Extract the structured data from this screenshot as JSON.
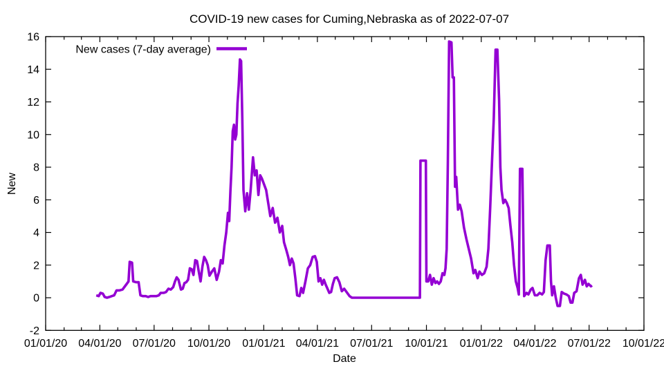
{
  "chart_data": {
    "type": "line",
    "title": "COVID-19 new cases for Cuming,Nebraska as of 2022-07-07",
    "xlabel": "Date",
    "ylabel": "New",
    "legend": {
      "label": "New cases (7-day average)",
      "position": "top-left-inside"
    },
    "line_color": "#9400d3",
    "background_color": "#ffffff",
    "border_color": "#000000",
    "grid": false,
    "x_axis": {
      "start_date": "2020-01-01",
      "end_date": "2022-10-01",
      "minor_tick_interval": "monthly",
      "ticks": [
        [
          "01/01/20",
          "2020-01-01"
        ],
        [
          "04/01/20",
          "2020-04-01"
        ],
        [
          "07/01/20",
          "2020-07-01"
        ],
        [
          "10/01/20",
          "2020-10-01"
        ],
        [
          "01/01/21",
          "2021-01-01"
        ],
        [
          "04/01/21",
          "2021-04-01"
        ],
        [
          "07/01/21",
          "2021-07-01"
        ],
        [
          "10/01/21",
          "2021-10-01"
        ],
        [
          "01/01/22",
          "2022-01-01"
        ],
        [
          "04/01/22",
          "2022-04-01"
        ],
        [
          "07/01/22",
          "2022-07-01"
        ],
        [
          "10/01/22",
          "2022-10-01"
        ]
      ]
    },
    "y_axis": {
      "min": -2,
      "max": 16,
      "tick_step": 2,
      "ticks": [
        -2,
        0,
        2,
        4,
        6,
        8,
        10,
        12,
        14,
        16
      ]
    },
    "series": [
      {
        "name": "New cases (7-day average)",
        "color": "#9400d3",
        "points": [
          [
            "2020-03-26",
            0.15
          ],
          [
            "2020-03-30",
            0.1
          ],
          [
            "2020-04-02",
            0.3
          ],
          [
            "2020-04-06",
            0.25
          ],
          [
            "2020-04-09",
            0.05
          ],
          [
            "2020-04-13",
            0
          ],
          [
            "2020-04-17",
            0.05
          ],
          [
            "2020-04-21",
            0.1
          ],
          [
            "2020-04-25",
            0.15
          ],
          [
            "2020-04-29",
            0.45
          ],
          [
            "2020-05-04",
            0.45
          ],
          [
            "2020-05-09",
            0.5
          ],
          [
            "2020-05-13",
            0.7
          ],
          [
            "2020-05-16",
            0.85
          ],
          [
            "2020-05-19",
            1.0
          ],
          [
            "2020-05-21",
            2.2
          ],
          [
            "2020-05-25",
            2.15
          ],
          [
            "2020-05-27",
            1.0
          ],
          [
            "2020-06-01",
            0.95
          ],
          [
            "2020-06-05",
            0.95
          ],
          [
            "2020-06-08",
            0.15
          ],
          [
            "2020-06-12",
            0.1
          ],
          [
            "2020-06-17",
            0.1
          ],
          [
            "2020-06-21",
            0.05
          ],
          [
            "2020-06-25",
            0.1
          ],
          [
            "2020-06-30",
            0.1
          ],
          [
            "2020-07-05",
            0.1
          ],
          [
            "2020-07-09",
            0.15
          ],
          [
            "2020-07-12",
            0.3
          ],
          [
            "2020-07-17",
            0.3
          ],
          [
            "2020-07-21",
            0.35
          ],
          [
            "2020-07-25",
            0.55
          ],
          [
            "2020-07-29",
            0.5
          ],
          [
            "2020-08-02",
            0.65
          ],
          [
            "2020-08-05",
            1.0
          ],
          [
            "2020-08-08",
            1.25
          ],
          [
            "2020-08-11",
            1.1
          ],
          [
            "2020-08-15",
            0.5
          ],
          [
            "2020-08-18",
            0.55
          ],
          [
            "2020-08-21",
            0.9
          ],
          [
            "2020-08-24",
            0.95
          ],
          [
            "2020-08-27",
            1.1
          ],
          [
            "2020-08-30",
            1.8
          ],
          [
            "2020-09-02",
            1.75
          ],
          [
            "2020-09-05",
            1.4
          ],
          [
            "2020-09-08",
            2.3
          ],
          [
            "2020-09-11",
            2.25
          ],
          [
            "2020-09-14",
            1.6
          ],
          [
            "2020-09-17",
            1.0
          ],
          [
            "2020-09-20",
            1.9
          ],
          [
            "2020-09-23",
            2.5
          ],
          [
            "2020-09-26",
            2.3
          ],
          [
            "2020-09-29",
            2.0
          ],
          [
            "2020-10-02",
            1.35
          ],
          [
            "2020-10-06",
            1.6
          ],
          [
            "2020-10-10",
            1.8
          ],
          [
            "2020-10-14",
            1.1
          ],
          [
            "2020-10-18",
            1.6
          ],
          [
            "2020-10-21",
            2.3
          ],
          [
            "2020-10-24",
            2.1
          ],
          [
            "2020-10-27",
            3.2
          ],
          [
            "2020-10-30",
            4.0
          ],
          [
            "2020-11-02",
            5.2
          ],
          [
            "2020-11-04",
            4.7
          ],
          [
            "2020-11-06",
            6.5
          ],
          [
            "2020-11-08",
            8.0
          ],
          [
            "2020-11-10",
            10.2
          ],
          [
            "2020-11-12",
            10.6
          ],
          [
            "2020-11-14",
            9.7
          ],
          [
            "2020-11-16",
            10.0
          ],
          [
            "2020-11-18",
            11.9
          ],
          [
            "2020-11-20",
            13.0
          ],
          [
            "2020-11-22",
            14.6
          ],
          [
            "2020-11-24",
            14.5
          ],
          [
            "2020-11-26",
            11.0
          ],
          [
            "2020-11-28",
            6.6
          ],
          [
            "2020-12-01",
            5.3
          ],
          [
            "2020-12-04",
            6.4
          ],
          [
            "2020-12-07",
            5.4
          ],
          [
            "2020-12-10",
            6.6
          ],
          [
            "2020-12-14",
            8.6
          ],
          [
            "2020-12-17",
            7.5
          ],
          [
            "2020-12-20",
            7.8
          ],
          [
            "2020-12-23",
            6.3
          ],
          [
            "2020-12-26",
            7.5
          ],
          [
            "2020-12-29",
            7.3
          ],
          [
            "2021-01-01",
            7.0
          ],
          [
            "2021-01-05",
            6.6
          ],
          [
            "2021-01-08",
            5.9
          ],
          [
            "2021-01-12",
            5.0
          ],
          [
            "2021-01-16",
            5.5
          ],
          [
            "2021-01-20",
            4.6
          ],
          [
            "2021-01-24",
            4.9
          ],
          [
            "2021-01-28",
            4.0
          ],
          [
            "2021-02-01",
            4.4
          ],
          [
            "2021-02-04",
            3.4
          ],
          [
            "2021-02-08",
            2.9
          ],
          [
            "2021-02-11",
            2.5
          ],
          [
            "2021-02-14",
            2.0
          ],
          [
            "2021-02-17",
            2.4
          ],
          [
            "2021-02-20",
            2.1
          ],
          [
            "2021-02-23",
            1.2
          ],
          [
            "2021-02-26",
            0.15
          ],
          [
            "2021-03-02",
            0.1
          ],
          [
            "2021-03-05",
            0.6
          ],
          [
            "2021-03-08",
            0.3
          ],
          [
            "2021-03-12",
            1.0
          ],
          [
            "2021-03-16",
            1.8
          ],
          [
            "2021-03-20",
            2.0
          ],
          [
            "2021-03-24",
            2.5
          ],
          [
            "2021-03-28",
            2.55
          ],
          [
            "2021-03-31",
            2.2
          ],
          [
            "2021-04-03",
            1.0
          ],
          [
            "2021-04-06",
            1.2
          ],
          [
            "2021-04-09",
            0.8
          ],
          [
            "2021-04-12",
            1.1
          ],
          [
            "2021-04-15",
            0.8
          ],
          [
            "2021-04-18",
            0.55
          ],
          [
            "2021-04-21",
            0.3
          ],
          [
            "2021-04-24",
            0.35
          ],
          [
            "2021-04-27",
            0.85
          ],
          [
            "2021-04-30",
            1.2
          ],
          [
            "2021-05-04",
            1.25
          ],
          [
            "2021-05-08",
            0.95
          ],
          [
            "2021-05-12",
            0.4
          ],
          [
            "2021-05-16",
            0.55
          ],
          [
            "2021-05-20",
            0.35
          ],
          [
            "2021-05-25",
            0.1
          ],
          [
            "2021-05-29",
            0
          ],
          [
            "2021-06-20",
            0
          ],
          [
            "2021-07-20",
            0
          ],
          [
            "2021-08-20",
            0
          ],
          [
            "2021-09-20",
            0
          ],
          [
            "2021-09-21",
            8.4
          ],
          [
            "2021-09-30",
            8.4
          ],
          [
            "2021-10-01",
            1.0
          ],
          [
            "2021-10-04",
            1.0
          ],
          [
            "2021-10-07",
            1.4
          ],
          [
            "2021-10-10",
            0.8
          ],
          [
            "2021-10-13",
            1.2
          ],
          [
            "2021-10-16",
            0.9
          ],
          [
            "2021-10-19",
            1.0
          ],
          [
            "2021-10-22",
            0.85
          ],
          [
            "2021-10-25",
            1.0
          ],
          [
            "2021-10-28",
            1.5
          ],
          [
            "2021-10-31",
            1.4
          ],
          [
            "2021-11-02",
            1.8
          ],
          [
            "2021-11-04",
            3.0
          ],
          [
            "2021-11-06",
            8.3
          ],
          [
            "2021-11-08",
            15.7
          ],
          [
            "2021-11-12",
            15.65
          ],
          [
            "2021-11-14",
            13.5
          ],
          [
            "2021-11-16",
            13.5
          ],
          [
            "2021-11-18",
            6.8
          ],
          [
            "2021-11-20",
            7.4
          ],
          [
            "2021-11-23",
            5.4
          ],
          [
            "2021-11-26",
            5.7
          ],
          [
            "2021-11-29",
            5.3
          ],
          [
            "2021-12-03",
            4.3
          ],
          [
            "2021-12-07",
            3.6
          ],
          [
            "2021-12-11",
            3.0
          ],
          [
            "2021-12-15",
            2.4
          ],
          [
            "2021-12-19",
            1.5
          ],
          [
            "2021-12-22",
            1.7
          ],
          [
            "2021-12-26",
            1.2
          ],
          [
            "2021-12-29",
            1.6
          ],
          [
            "2022-01-02",
            1.4
          ],
          [
            "2022-01-06",
            1.5
          ],
          [
            "2022-01-10",
            1.9
          ],
          [
            "2022-01-13",
            3.0
          ],
          [
            "2022-01-16",
            5.5
          ],
          [
            "2022-01-19",
            8.3
          ],
          [
            "2022-01-22",
            11.0
          ],
          [
            "2022-01-25",
            15.2
          ],
          [
            "2022-01-28",
            15.2
          ],
          [
            "2022-01-31",
            12.1
          ],
          [
            "2022-02-02",
            8.0
          ],
          [
            "2022-02-04",
            6.6
          ],
          [
            "2022-02-07",
            5.8
          ],
          [
            "2022-02-10",
            6.0
          ],
          [
            "2022-02-13",
            5.8
          ],
          [
            "2022-02-16",
            5.5
          ],
          [
            "2022-02-19",
            4.4
          ],
          [
            "2022-02-22",
            3.4
          ],
          [
            "2022-02-25",
            2.0
          ],
          [
            "2022-02-28",
            1.0
          ],
          [
            "2022-03-03",
            0.6
          ],
          [
            "2022-03-05",
            0.2
          ],
          [
            "2022-03-07",
            7.9
          ],
          [
            "2022-03-11",
            7.9
          ],
          [
            "2022-03-14",
            0.1
          ],
          [
            "2022-03-18",
            0.3
          ],
          [
            "2022-03-21",
            0.2
          ],
          [
            "2022-03-25",
            0.5
          ],
          [
            "2022-03-28",
            0.6
          ],
          [
            "2022-04-01",
            0.15
          ],
          [
            "2022-04-05",
            0.15
          ],
          [
            "2022-04-09",
            0.3
          ],
          [
            "2022-04-13",
            0.2
          ],
          [
            "2022-04-16",
            0.35
          ],
          [
            "2022-04-19",
            2.3
          ],
          [
            "2022-04-22",
            3.2
          ],
          [
            "2022-04-26",
            3.2
          ],
          [
            "2022-04-28",
            1.0
          ],
          [
            "2022-04-30",
            0.15
          ],
          [
            "2022-05-03",
            0.7
          ],
          [
            "2022-05-06",
            0
          ],
          [
            "2022-05-09",
            -0.5
          ],
          [
            "2022-05-13",
            -0.5
          ],
          [
            "2022-05-16",
            0.35
          ],
          [
            "2022-05-20",
            0.25
          ],
          [
            "2022-05-24",
            0.2
          ],
          [
            "2022-05-28",
            0.1
          ],
          [
            "2022-05-31",
            -0.3
          ],
          [
            "2022-06-03",
            -0.3
          ],
          [
            "2022-06-06",
            0.3
          ],
          [
            "2022-06-10",
            0.4
          ],
          [
            "2022-06-14",
            1.2
          ],
          [
            "2022-06-17",
            1.4
          ],
          [
            "2022-06-20",
            0.8
          ],
          [
            "2022-06-24",
            1.1
          ],
          [
            "2022-06-27",
            0.7
          ],
          [
            "2022-06-30",
            0.85
          ],
          [
            "2022-07-04",
            0.7
          ],
          [
            "2022-07-06",
            0.75
          ]
        ]
      }
    ]
  }
}
